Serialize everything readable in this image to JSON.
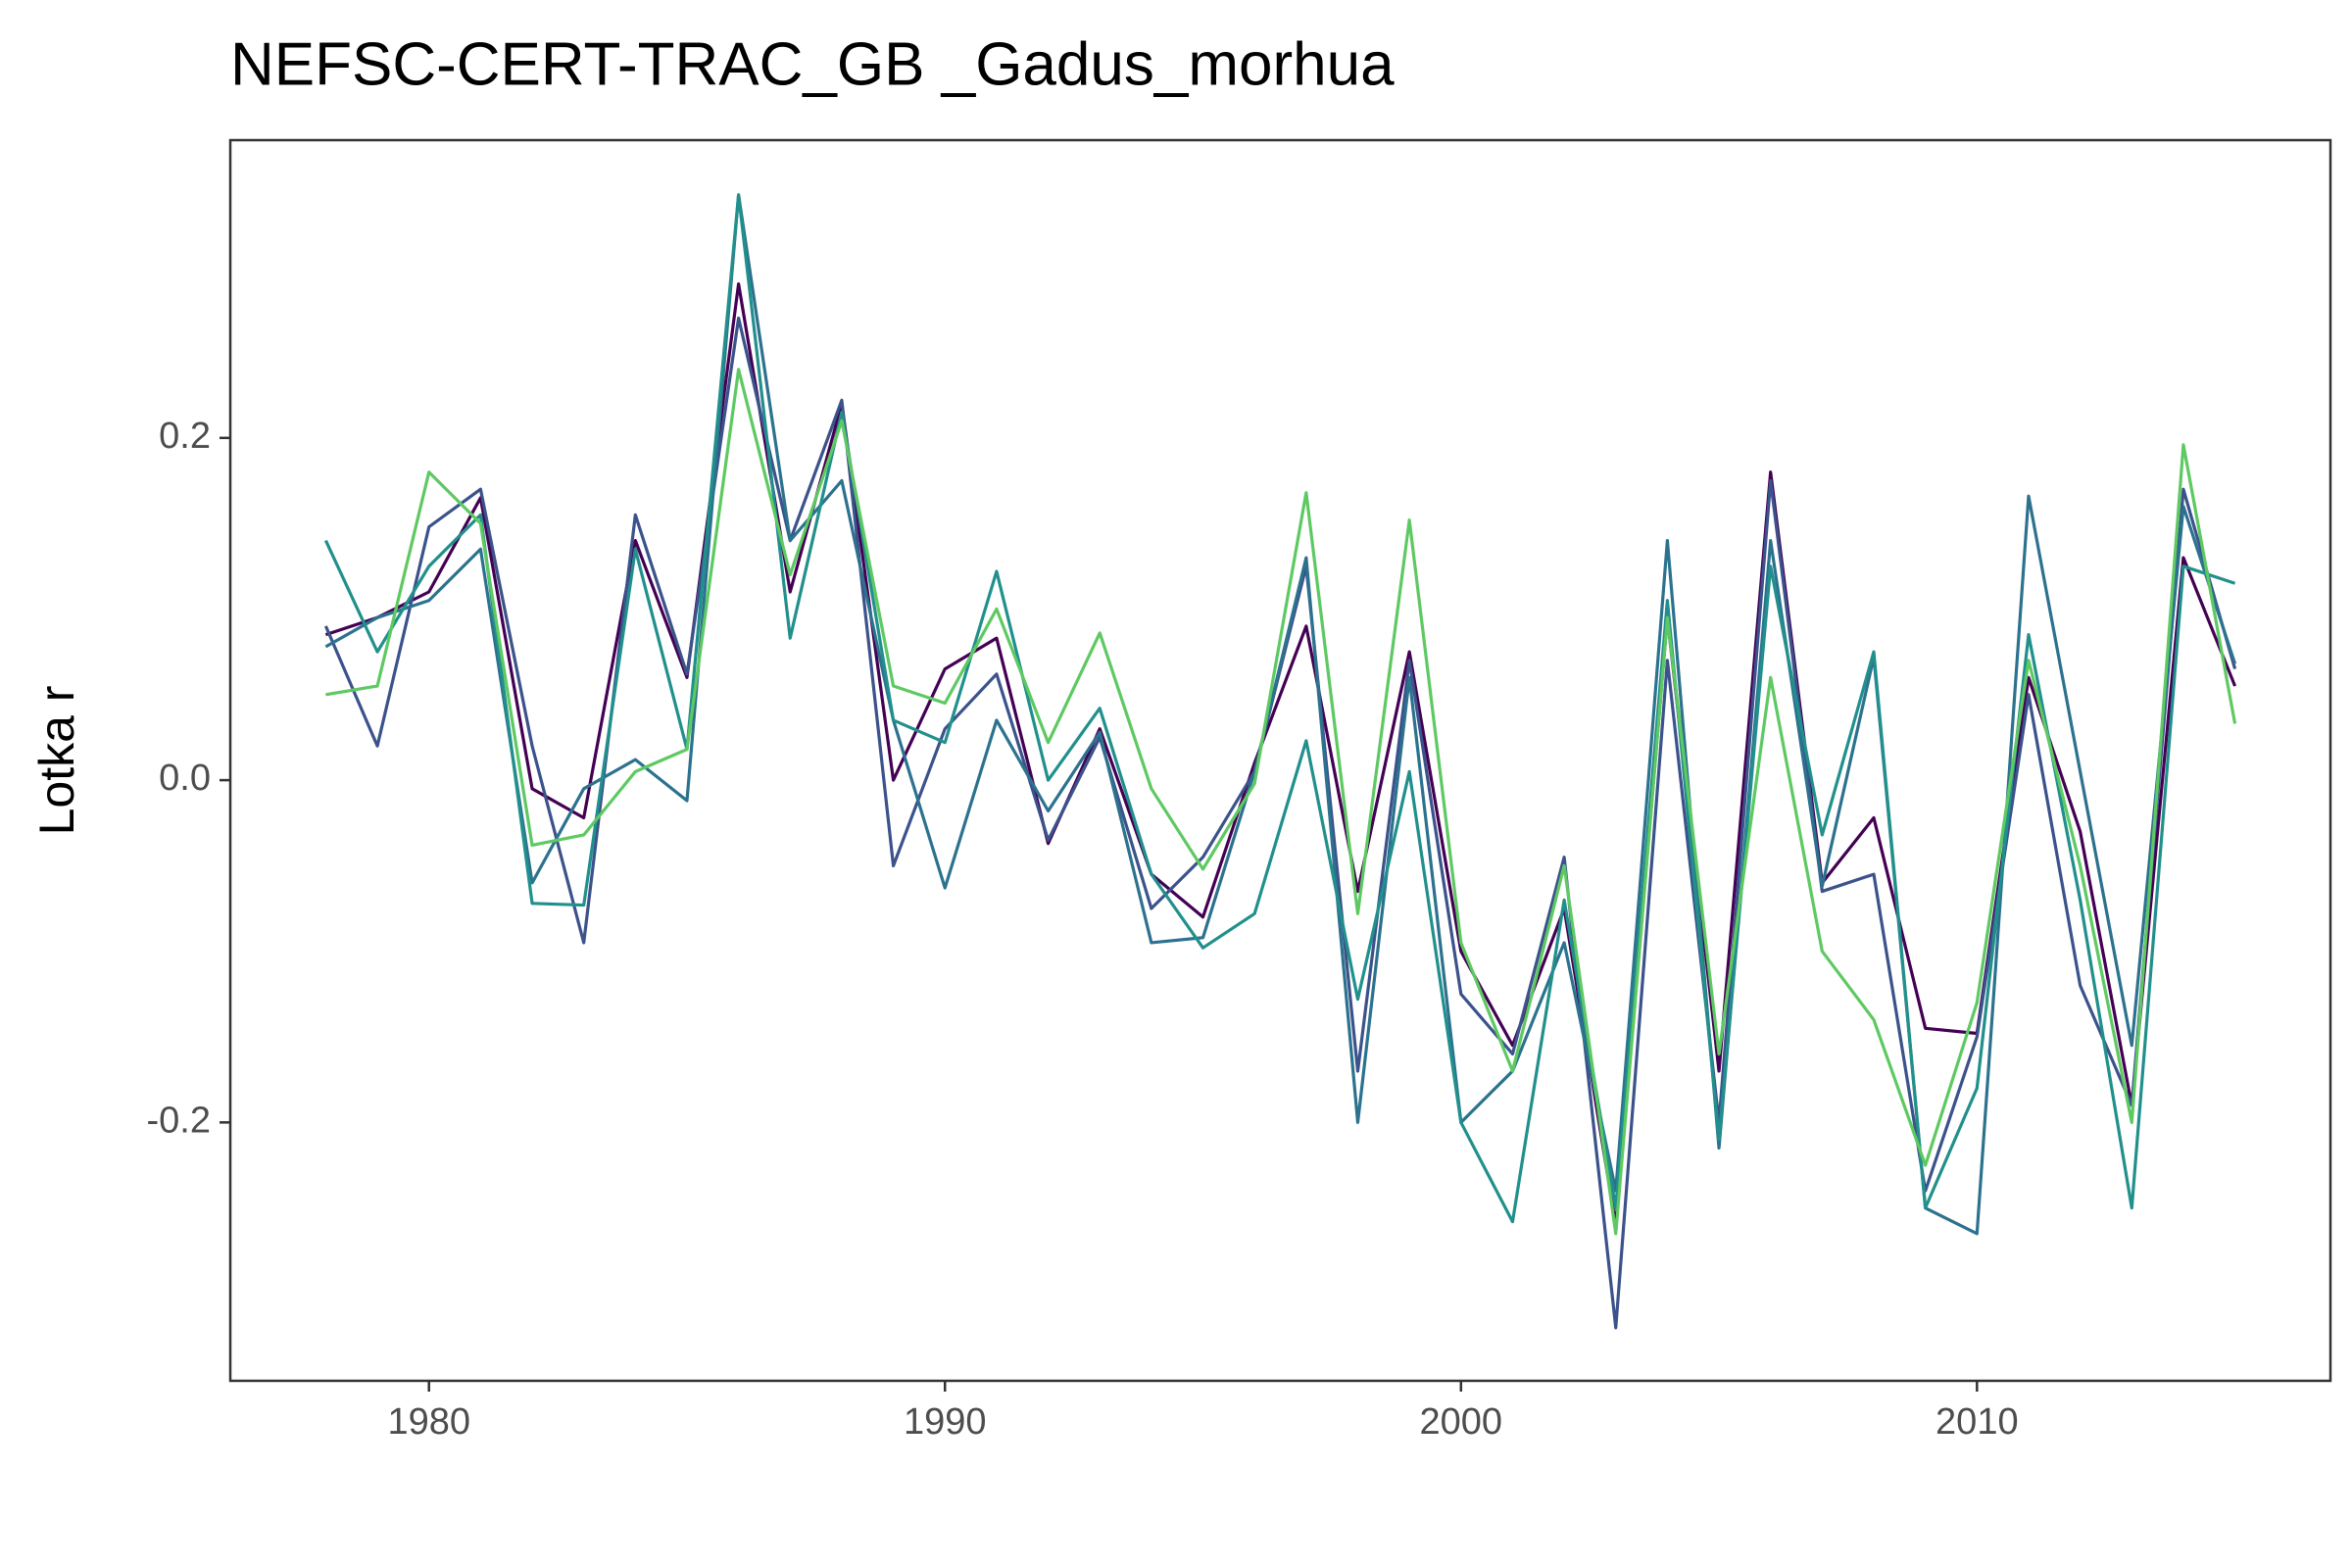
{
  "chart_data": {
    "type": "line",
    "title": "NEFSC-CERT-TRAC_GB _Gadus_morhua",
    "y_label": "Lotka r",
    "x": [
      1978,
      1979,
      1980,
      1981,
      1982,
      1983,
      1984,
      1985,
      1986,
      1987,
      1988,
      1989,
      1990,
      1991,
      1992,
      1993,
      1994,
      1995,
      1996,
      1997,
      1998,
      1999,
      2000,
      2001,
      2002,
      2003,
      2004,
      2005,
      2006,
      2007,
      2008,
      2009,
      2010,
      2011,
      2012,
      2013,
      2014,
      2015
    ],
    "series": [
      {
        "color": "#440154",
        "values": [
          0.085,
          0.095,
          0.11,
          0.165,
          -0.005,
          -0.022,
          0.14,
          0.06,
          0.29,
          0.11,
          0.22,
          0.0,
          0.065,
          0.083,
          -0.037,
          0.03,
          -0.055,
          -0.08,
          0.01,
          0.09,
          -0.065,
          0.075,
          -0.1,
          -0.155,
          -0.075,
          -0.26,
          0.095,
          -0.17,
          0.18,
          -0.06,
          -0.022,
          -0.145,
          -0.148,
          0.06,
          -0.03,
          -0.19,
          0.13,
          0.055
        ]
      },
      {
        "color": "#3b528b",
        "values": [
          0.09,
          0.02,
          0.148,
          0.17,
          0.02,
          -0.095,
          0.155,
          0.062,
          0.27,
          0.14,
          0.222,
          -0.05,
          0.03,
          0.062,
          -0.035,
          0.025,
          -0.075,
          -0.045,
          0.005,
          0.125,
          -0.17,
          0.07,
          -0.125,
          -0.16,
          -0.045,
          -0.32,
          0.07,
          -0.2,
          0.175,
          -0.065,
          -0.055,
          -0.24,
          -0.15,
          0.05,
          -0.12,
          -0.19,
          0.17,
          0.065
        ]
      },
      {
        "color": "#2c728e",
        "values": [
          0.078,
          0.095,
          0.105,
          0.135,
          -0.06,
          -0.005,
          0.012,
          -0.012,
          0.342,
          0.14,
          0.175,
          0.035,
          -0.063,
          0.035,
          -0.018,
          0.028,
          -0.095,
          -0.092,
          0.005,
          0.13,
          -0.2,
          0.06,
          -0.2,
          -0.17,
          -0.095,
          -0.24,
          0.14,
          -0.215,
          0.14,
          -0.062,
          0.072,
          -0.25,
          -0.265,
          0.166,
          0.005,
          -0.155,
          0.16,
          0.068
        ]
      },
      {
        "color": "#21908c",
        "values": [
          0.14,
          0.075,
          0.125,
          0.155,
          -0.072,
          -0.073,
          0.135,
          0.018,
          0.342,
          0.083,
          0.215,
          0.035,
          0.022,
          0.122,
          0.0,
          0.042,
          -0.055,
          -0.098,
          -0.078,
          0.023,
          -0.128,
          0.005,
          -0.2,
          -0.258,
          -0.07,
          -0.25,
          0.105,
          -0.21,
          0.125,
          -0.032,
          0.075,
          -0.25,
          -0.18,
          0.085,
          -0.07,
          -0.25,
          0.125,
          0.115
        ]
      },
      {
        "color": "#5ec962",
        "values": [
          0.05,
          0.055,
          0.18,
          0.15,
          -0.038,
          -0.032,
          0.005,
          0.018,
          0.24,
          0.12,
          0.21,
          0.055,
          0.045,
          0.1,
          0.022,
          0.086,
          -0.005,
          -0.052,
          -0.002,
          0.168,
          -0.078,
          0.152,
          -0.095,
          -0.17,
          -0.05,
          -0.265,
          0.095,
          -0.16,
          0.06,
          -0.1,
          -0.14,
          -0.225,
          -0.13,
          0.07,
          -0.05,
          -0.2,
          0.196,
          0.033
        ]
      }
    ],
    "xlim": [
      1976.15,
      2016.85
    ],
    "xticks": [
      1980,
      1990,
      2000,
      2010
    ],
    "ylim": [
      -0.351,
      0.374
    ],
    "yticks": [
      -0.2,
      {
        "value": 0.0,
        "label": "0.0"
      },
      0.2
    ]
  }
}
